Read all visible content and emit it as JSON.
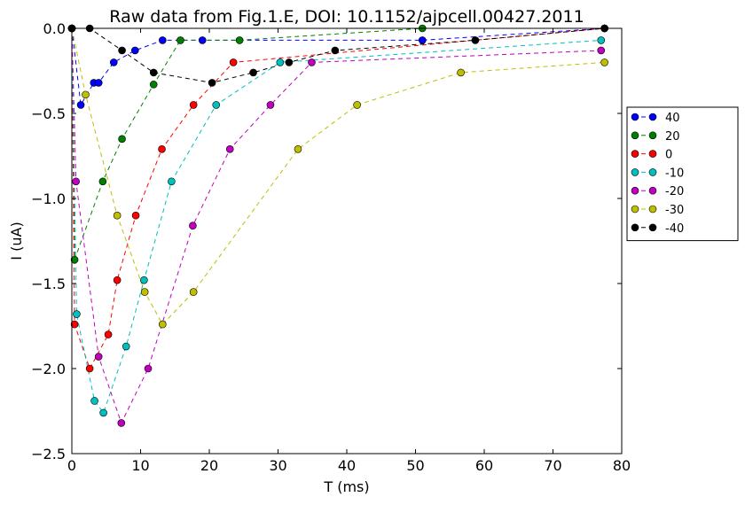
{
  "chart_data": {
    "type": "line",
    "title": "Raw data from Fig.1.E, DOI: 10.1152/ajpcell.00427.2011",
    "xlabel": "T (ms)",
    "ylabel": "I (uA)",
    "xlim": [
      0,
      80
    ],
    "ylim": [
      -2.5,
      0.0
    ],
    "xticks": [
      0,
      10,
      20,
      30,
      40,
      50,
      60,
      70,
      80
    ],
    "xtick_labels": [
      "0",
      "10",
      "20",
      "30",
      "40",
      "50",
      "60",
      "70",
      "80"
    ],
    "yticks": [
      0.0,
      -0.5,
      -1.0,
      -1.5,
      -2.0,
      -2.5
    ],
    "ytick_labels": [
      "0.0",
      "−0.5",
      "−1.0",
      "−1.5",
      "−2.0",
      "−2.5"
    ],
    "grid": false,
    "legend_position": "right, outside plot",
    "line_style": "dashed with circle markers",
    "series": [
      {
        "name": "40",
        "color": "#0000ff",
        "x": [
          0.0,
          1.3,
          3.2,
          3.9,
          6.1,
          9.2,
          13.2,
          19.0,
          51.0,
          77.5
        ],
        "y": [
          0.0,
          -0.45,
          -0.32,
          -0.32,
          -0.2,
          -0.13,
          -0.07,
          -0.07,
          -0.07,
          0.0
        ]
      },
      {
        "name": "20",
        "color": "#008000",
        "x": [
          0.0,
          0.4,
          4.5,
          7.3,
          11.9,
          15.8,
          24.4,
          51.0,
          77.5
        ],
        "y": [
          0.0,
          -1.36,
          -0.9,
          -0.65,
          -0.33,
          -0.07,
          -0.07,
          0.0,
          0.0
        ]
      },
      {
        "name": "0",
        "color": "#ff0000",
        "x": [
          0.0,
          0.4,
          2.6,
          5.3,
          6.6,
          9.3,
          13.1,
          17.7,
          23.5,
          77.5
        ],
        "y": [
          0.0,
          -1.74,
          -2.0,
          -1.8,
          -1.48,
          -1.1,
          -0.71,
          -0.45,
          -0.2,
          0.0
        ]
      },
      {
        "name": "-10",
        "color": "#00bfbf",
        "x": [
          0.0,
          0.7,
          3.3,
          4.6,
          7.9,
          10.5,
          14.5,
          21.0,
          30.3,
          77.0
        ],
        "y": [
          0.0,
          -1.68,
          -2.19,
          -2.26,
          -1.87,
          -1.48,
          -0.9,
          -0.45,
          -0.2,
          -0.07
        ]
      },
      {
        "name": "-20",
        "color": "#bf00bf",
        "x": [
          0.0,
          0.6,
          3.9,
          7.2,
          11.1,
          17.6,
          23.0,
          28.9,
          34.9,
          77.0
        ],
        "y": [
          0.0,
          -0.9,
          -1.93,
          -2.32,
          -2.0,
          -1.16,
          -0.71,
          -0.45,
          -0.2,
          -0.13
        ]
      },
      {
        "name": "-30",
        "color": "#bfbf00",
        "x": [
          0.0,
          2.0,
          6.6,
          10.6,
          13.2,
          17.7,
          32.9,
          41.5,
          56.6,
          77.5
        ],
        "y": [
          0.0,
          -0.39,
          -1.1,
          -1.55,
          -1.74,
          -1.55,
          -0.71,
          -0.45,
          -0.26,
          -0.2
        ]
      },
      {
        "name": "-40",
        "color": "#000000",
        "x": [
          0.0,
          2.6,
          7.3,
          11.9,
          20.4,
          26.4,
          31.6,
          38.3,
          58.7,
          77.5
        ],
        "y": [
          0.0,
          0.0,
          -0.13,
          -0.26,
          -0.32,
          -0.26,
          -0.2,
          -0.13,
          -0.07,
          0.0
        ]
      }
    ]
  }
}
